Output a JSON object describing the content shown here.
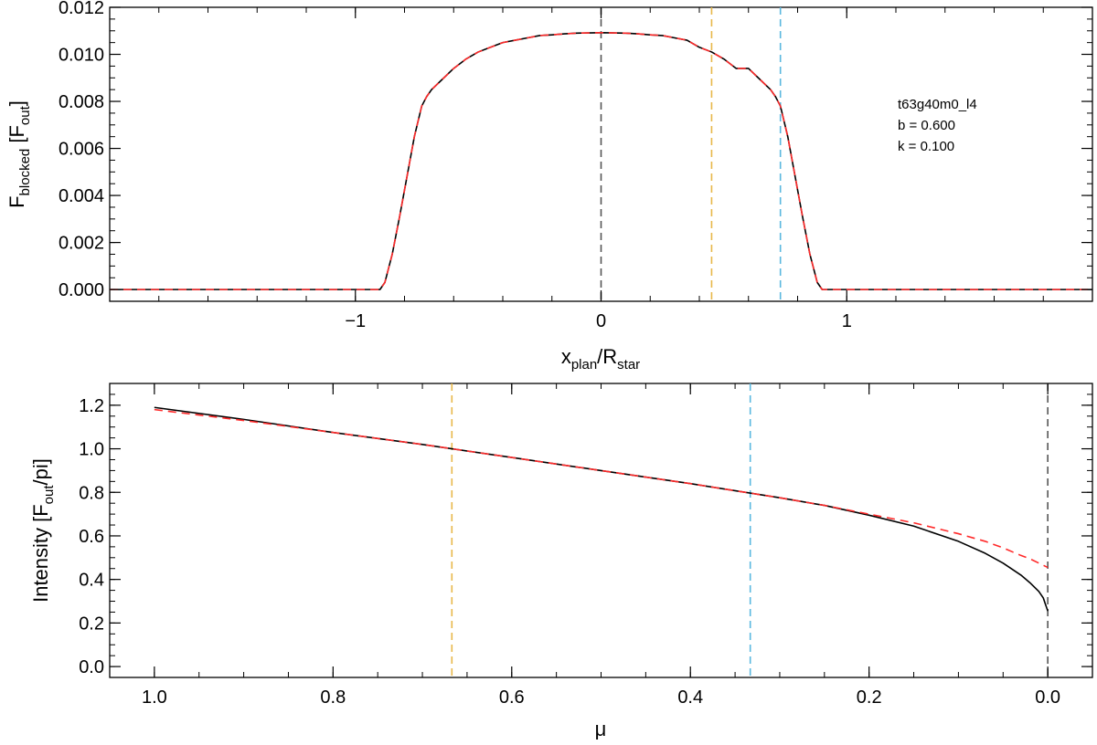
{
  "chart_data": [
    {
      "type": "line",
      "xlabel": "x_plan/R_star",
      "ylabel": "F_blocked [F_out]",
      "xlabel_parts": {
        "main": "x",
        "sub1": "plan",
        "sep": "/R",
        "sub2": "star"
      },
      "ylabel_parts": {
        "main": "F",
        "sub1": "blocked",
        "mid": " [F",
        "sub2": "out",
        "end": "]"
      },
      "xlim": [
        -2.0,
        2.0
      ],
      "ylim": [
        -0.0005,
        0.012
      ],
      "xticks": [
        -1,
        0,
        1
      ],
      "xtick_labels": [
        "−1",
        "0",
        "1"
      ],
      "yticks": [
        0.0,
        0.002,
        0.004,
        0.006,
        0.008,
        0.01,
        0.012
      ],
      "ytick_labels": [
        "0.000",
        "0.002",
        "0.004",
        "0.006",
        "0.008",
        "0.010",
        "0.012"
      ],
      "annotations": [
        "t63g40m0_l4",
        "b = 0.600",
        "k = 0.100"
      ],
      "vlines": [
        {
          "x": 0.0,
          "color": "#555555"
        },
        {
          "x": 0.45,
          "color": "#e8b84a"
        },
        {
          "x": 0.73,
          "color": "#5bb8df"
        }
      ],
      "series": [
        {
          "color": "#000000",
          "style": "solid",
          "x": [
            -2.0,
            -0.9,
            -0.88,
            -0.85,
            -0.82,
            -0.79,
            -0.76,
            -0.73,
            -0.71,
            -0.69,
            -0.65,
            -0.6,
            -0.55,
            -0.5,
            -0.45,
            -0.4,
            -0.35,
            -0.3,
            -0.25,
            -0.2,
            -0.15,
            -0.1,
            -0.05,
            0.0,
            0.05,
            0.1,
            0.15,
            0.2,
            0.25,
            0.3,
            0.35,
            0.4,
            0.45,
            0.5,
            0.55,
            0.6,
            0.65,
            0.69,
            0.71,
            0.73,
            0.76,
            0.79,
            0.82,
            0.85,
            0.88,
            0.9,
            2.0
          ],
          "y": [
            0.0,
            0.0,
            0.0003,
            0.0015,
            0.0031,
            0.0048,
            0.0065,
            0.0078,
            0.0082,
            0.0085,
            0.0089,
            0.0094,
            0.0098,
            0.0101,
            0.0103,
            0.0105,
            0.0106,
            0.0107,
            0.0108,
            0.01083,
            0.01087,
            0.0109,
            0.01091,
            0.01092,
            0.01091,
            0.0109,
            0.01087,
            0.01083,
            0.0108,
            0.0107,
            0.0106,
            0.0103,
            0.0101,
            0.0098,
            0.0094,
            0.0094,
            0.0089,
            0.0085,
            0.0082,
            0.0078,
            0.0065,
            0.0048,
            0.0031,
            0.0015,
            0.0003,
            0.0,
            0.0
          ]
        },
        {
          "color": "#ff2a2a",
          "style": "dashed",
          "x": [
            -2.0,
            -0.9,
            -0.88,
            -0.85,
            -0.82,
            -0.79,
            -0.76,
            -0.73,
            -0.71,
            -0.69,
            -0.65,
            -0.6,
            -0.55,
            -0.5,
            -0.45,
            -0.4,
            -0.35,
            -0.3,
            -0.25,
            -0.2,
            -0.15,
            -0.1,
            -0.05,
            0.0,
            0.05,
            0.1,
            0.15,
            0.2,
            0.25,
            0.3,
            0.35,
            0.4,
            0.45,
            0.5,
            0.55,
            0.6,
            0.65,
            0.69,
            0.71,
            0.73,
            0.76,
            0.79,
            0.82,
            0.85,
            0.88,
            0.9,
            2.0
          ],
          "y": [
            0.0,
            0.0,
            0.0003,
            0.0015,
            0.0031,
            0.0048,
            0.0065,
            0.0078,
            0.0082,
            0.0085,
            0.0089,
            0.0094,
            0.0098,
            0.0101,
            0.0103,
            0.0105,
            0.0106,
            0.0107,
            0.0108,
            0.01083,
            0.01087,
            0.0109,
            0.01091,
            0.01092,
            0.01091,
            0.0109,
            0.01087,
            0.01083,
            0.0108,
            0.0107,
            0.0106,
            0.0103,
            0.0101,
            0.0098,
            0.0094,
            0.0094,
            0.0089,
            0.0085,
            0.0082,
            0.0078,
            0.0065,
            0.0048,
            0.0031,
            0.0015,
            0.0003,
            0.0,
            0.0
          ]
        }
      ]
    },
    {
      "type": "line",
      "xlabel": "μ",
      "ylabel": "Intensity [F_out/pi]",
      "ylabel_parts": {
        "main": "Intensity [F",
        "sub1": "out",
        "end": "/pi]"
      },
      "xlim": [
        1.05,
        -0.05
      ],
      "ylim": [
        -0.05,
        1.3
      ],
      "xticks": [
        1.0,
        0.8,
        0.6,
        0.4,
        0.2,
        0.0
      ],
      "xtick_labels": [
        "1.0",
        "0.8",
        "0.6",
        "0.4",
        "0.2",
        "0.0"
      ],
      "yticks": [
        0.0,
        0.2,
        0.4,
        0.6,
        0.8,
        1.0,
        1.2
      ],
      "ytick_labels": [
        "0.0",
        "0.2",
        "0.4",
        "0.6",
        "0.8",
        "1.0",
        "1.2"
      ],
      "vlines": [
        {
          "x": 0.667,
          "color": "#e8b84a"
        },
        {
          "x": 0.333,
          "color": "#5bb8df"
        },
        {
          "x": 0.0,
          "color": "#555555"
        }
      ],
      "series": [
        {
          "color": "#000000",
          "style": "solid",
          "x": [
            1.0,
            0.9,
            0.8,
            0.7,
            0.6,
            0.5,
            0.4,
            0.3,
            0.25,
            0.2,
            0.15,
            0.1,
            0.07,
            0.05,
            0.03,
            0.02,
            0.01,
            0.005,
            0.0
          ],
          "y": [
            1.19,
            1.135,
            1.075,
            1.02,
            0.96,
            0.9,
            0.84,
            0.775,
            0.74,
            0.695,
            0.645,
            0.575,
            0.52,
            0.475,
            0.42,
            0.385,
            0.345,
            0.315,
            0.255
          ]
        },
        {
          "color": "#ff2a2a",
          "style": "dashed",
          "x": [
            1.0,
            0.9,
            0.8,
            0.7,
            0.6,
            0.5,
            0.4,
            0.3,
            0.25,
            0.2,
            0.15,
            0.1,
            0.07,
            0.05,
            0.03,
            0.02,
            0.01,
            0.0
          ],
          "y": [
            1.18,
            1.13,
            1.075,
            1.02,
            0.96,
            0.9,
            0.84,
            0.775,
            0.74,
            0.7,
            0.66,
            0.61,
            0.575,
            0.545,
            0.51,
            0.495,
            0.475,
            0.455
          ]
        }
      ]
    }
  ]
}
